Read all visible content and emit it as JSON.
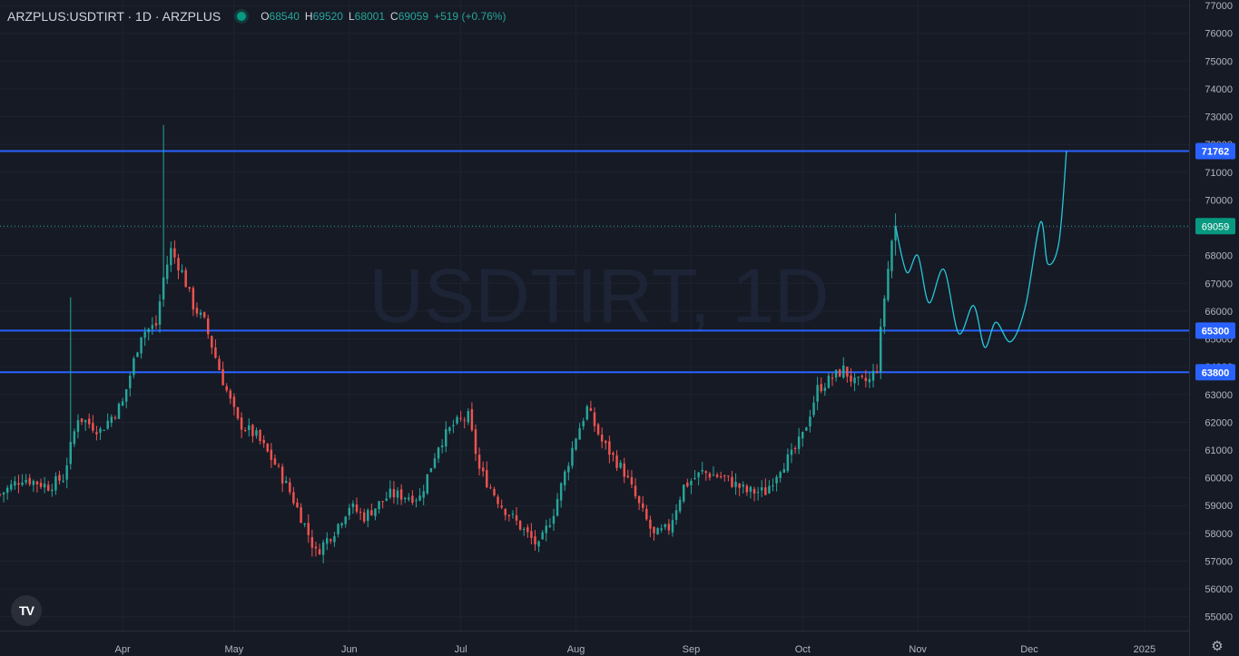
{
  "header": {
    "symbol": "ARZPLUS:USDTIRT · 1D · ARZPLUS",
    "open_label": "O",
    "open": "68540",
    "high_label": "H",
    "high": "69520",
    "low_label": "L",
    "low": "68001",
    "close_label": "C",
    "close": "69059",
    "change": "+519 (+0.76%)"
  },
  "watermark": "USDTIRT, 1D",
  "logo_text": "TV",
  "icons": {
    "logo": "tradingview-logo-icon",
    "settings": "gear-icon"
  },
  "colors": {
    "background": "#161a25",
    "up": "#26a69a",
    "down": "#ef5350",
    "level_line": "#2962ff",
    "projection": "#26c6da",
    "grid": "#1f2330"
  },
  "chart_data": {
    "type": "candlestick",
    "symbol": "ARZPLUS:USDTIRT",
    "interval": "1D",
    "y_ticks": [
      55000,
      56000,
      57000,
      58000,
      59000,
      60000,
      61000,
      62000,
      63000,
      64000,
      65000,
      66000,
      67000,
      68000,
      69000,
      70000,
      71000,
      72000,
      73000,
      74000,
      75000,
      76000,
      77000
    ],
    "ylim": [
      54500,
      77200
    ],
    "x_ticks": [
      {
        "label": "Apr",
        "date": "2024-04-01"
      },
      {
        "label": "May",
        "date": "2024-05-01"
      },
      {
        "label": "Jun",
        "date": "2024-06-01"
      },
      {
        "label": "Jul",
        "date": "2024-07-01"
      },
      {
        "label": "Aug",
        "date": "2024-08-01"
      },
      {
        "label": "Sep",
        "date": "2024-09-01"
      },
      {
        "label": "Oct",
        "date": "2024-10-01"
      },
      {
        "label": "Nov",
        "date": "2024-11-01"
      },
      {
        "label": "Dec",
        "date": "2024-12-01"
      },
      {
        "label": "2025",
        "date": "2025-01-01"
      }
    ],
    "xlim": [
      "2024-02-28",
      "2025-01-13"
    ],
    "price_lines": [
      {
        "value": 71762,
        "label": "71762"
      },
      {
        "value": 65300,
        "label": "65300"
      },
      {
        "value": 63800,
        "label": "63800"
      }
    ],
    "last_price": {
      "value": 69059,
      "label": "69059"
    },
    "anchors": [
      [
        "2024-02-28",
        59400
      ],
      [
        "2024-03-05",
        60000
      ],
      [
        "2024-03-12",
        59700
      ],
      [
        "2024-03-16",
        60000
      ],
      [
        "2024-03-20",
        62200
      ],
      [
        "2024-03-26",
        61700
      ],
      [
        "2024-04-01",
        62700
      ],
      [
        "2024-04-06",
        65200
      ],
      [
        "2024-04-10",
        65500
      ],
      [
        "2024-04-12",
        67200
      ],
      [
        "2024-04-14",
        68200
      ],
      [
        "2024-04-17",
        67400
      ],
      [
        "2024-04-20",
        66200
      ],
      [
        "2024-04-23",
        65600
      ],
      [
        "2024-04-28",
        63500
      ],
      [
        "2024-05-02",
        62000
      ],
      [
        "2024-05-07",
        61500
      ],
      [
        "2024-05-12",
        60500
      ],
      [
        "2024-05-16",
        59500
      ],
      [
        "2024-05-20",
        58300
      ],
      [
        "2024-05-23",
        57300
      ],
      [
        "2024-05-28",
        58100
      ],
      [
        "2024-06-01",
        59000
      ],
      [
        "2024-06-05",
        58600
      ],
      [
        "2024-06-12",
        59400
      ],
      [
        "2024-06-20",
        59300
      ],
      [
        "2024-06-25",
        61200
      ],
      [
        "2024-06-29",
        61900
      ],
      [
        "2024-07-03",
        62200
      ],
      [
        "2024-07-06",
        60300
      ],
      [
        "2024-07-12",
        59000
      ],
      [
        "2024-07-18",
        58100
      ],
      [
        "2024-07-22",
        57500
      ],
      [
        "2024-07-26",
        58800
      ],
      [
        "2024-08-01",
        61500
      ],
      [
        "2024-08-04",
        62500
      ],
      [
        "2024-08-08",
        61300
      ],
      [
        "2024-08-14",
        60200
      ],
      [
        "2024-08-18",
        59000
      ],
      [
        "2024-08-22",
        57900
      ],
      [
        "2024-08-26",
        58200
      ],
      [
        "2024-08-30",
        59700
      ],
      [
        "2024-09-04",
        60200
      ],
      [
        "2024-09-10",
        60000
      ],
      [
        "2024-09-16",
        59500
      ],
      [
        "2024-09-21",
        59500
      ],
      [
        "2024-09-25",
        60400
      ],
      [
        "2024-09-28",
        60800
      ],
      [
        "2024-10-01",
        61500
      ],
      [
        "2024-10-05",
        63200
      ],
      [
        "2024-10-08",
        63500
      ],
      [
        "2024-10-12",
        63900
      ],
      [
        "2024-10-15",
        63400
      ],
      [
        "2024-10-19",
        63500
      ],
      [
        "2024-10-21",
        64000
      ],
      [
        "2024-10-23",
        66500
      ],
      [
        "2024-10-25",
        68540
      ],
      [
        "2024-10-26",
        69059
      ]
    ],
    "projection": [
      [
        "2024-10-26",
        69059
      ],
      [
        "2024-10-29",
        67400
      ],
      [
        "2024-11-01",
        68000
      ],
      [
        "2024-11-04",
        66300
      ],
      [
        "2024-11-08",
        67500
      ],
      [
        "2024-11-12",
        65200
      ],
      [
        "2024-11-16",
        66200
      ],
      [
        "2024-11-19",
        64700
      ],
      [
        "2024-11-22",
        65600
      ],
      [
        "2024-11-26",
        64900
      ],
      [
        "2024-11-30",
        66200
      ],
      [
        "2024-12-04",
        69200
      ],
      [
        "2024-12-06",
        67700
      ],
      [
        "2024-12-09",
        68500
      ],
      [
        "2024-12-11",
        71762
      ]
    ],
    "spikes": [
      {
        "date": "2024-03-18",
        "high": 66500
      },
      {
        "date": "2024-04-12",
        "high": 72700
      }
    ]
  }
}
